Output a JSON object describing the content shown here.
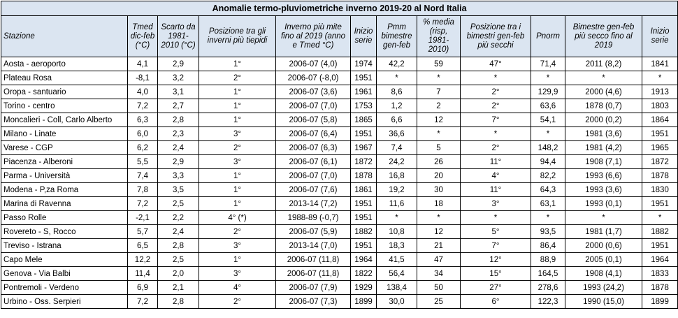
{
  "title": "Anomalie termo-pluviometriche inverno 2019-20 al Nord Italia",
  "headers": [
    "Stazione",
    "Tmed dic-feb (°C)",
    "Scarto da 1981-2010 (°C)",
    "Posizione tra gli inverni più tiepidi",
    "Inverno più mite fino al 2019 (anno e Tmed °C)",
    "Inizio serie",
    "Pmm bimestre gen-feb",
    "% media (risp, 1981-2010)",
    "Posizione tra i bimestri gen-feb più secchi",
    "Pnorm",
    "Bimestre gen-feb più secco fino al 2019",
    "Inizio serie"
  ],
  "rows": [
    [
      "Aosta - aeroporto",
      "4,1",
      "2,9",
      "1°",
      "2006-07 (4,0)",
      "1974",
      "42,2",
      "59",
      "47°",
      "71,4",
      "2011 (8,2)",
      "1841"
    ],
    [
      "Plateau Rosa",
      "-8,1",
      "3,2",
      "2°",
      "2006-07 (-8,0)",
      "1951",
      "*",
      "*",
      "*",
      "*",
      "*",
      "*"
    ],
    [
      "Oropa - santuario",
      "4,0",
      "3,1",
      "1°",
      "2006-07 (3,6)",
      "1961",
      "8,6",
      "7",
      "2°",
      "129,9",
      "2000 (4,6)",
      "1913"
    ],
    [
      "Torino - centro",
      "7,2",
      "2,7",
      "1°",
      "2006-07 (7,0)",
      "1753",
      "1,2",
      "2",
      "2°",
      "63,6",
      "1878 (0,7)",
      "1803"
    ],
    [
      "Moncalieri - Coll, Carlo Alberto",
      "6,3",
      "2,8",
      "1°",
      "2006-07 (5,8)",
      "1865",
      "6,6",
      "12",
      "7°",
      "54,1",
      "2000 (0,2)",
      "1864"
    ],
    [
      "Milano - Linate",
      "6,0",
      "2,3",
      "3°",
      "2006-07 (6,4)",
      "1951",
      "36,6",
      "*",
      "*",
      "*",
      "1981 (3,6)",
      "1951"
    ],
    [
      "Varese - CGP",
      "6,2",
      "2,4",
      "2°",
      "2006-07 (6,3)",
      "1967",
      "7,4",
      "5",
      "2°",
      "148,2",
      "1981 (4,2)",
      "1965"
    ],
    [
      "Piacenza - Alberoni",
      "5,5",
      "2,9",
      "3°",
      "2006-07 (6,1)",
      "1872",
      "24,2",
      "26",
      "11°",
      "94,4",
      "1908 (7,1)",
      "1872"
    ],
    [
      "Parma - Università",
      "7,4",
      "3,3",
      "1°",
      "2006-07 (7,0)",
      "1878",
      "16,8",
      "20",
      "4°",
      "82,2",
      "1993 (6,6)",
      "1878"
    ],
    [
      "Modena - P,za Roma",
      "7,8",
      "3,5",
      "1°",
      "2006-07 (7,6)",
      "1861",
      "19,2",
      "30",
      "11°",
      "64,3",
      "1993 (3,6)",
      "1830"
    ],
    [
      "Marina di Ravenna",
      "7,2",
      "2,5",
      "1°",
      "2013-14 (7,2)",
      "1951",
      "11,6",
      "18",
      "3°",
      "63,1",
      "1993 (0,1)",
      "1951"
    ],
    [
      "Passo Rolle",
      "-2,1",
      "2,2",
      "4° (*)",
      "1988-89 (-0,7)",
      "1951",
      "*",
      "*",
      "*",
      "*",
      "*",
      "*"
    ],
    [
      "Rovereto - S, Rocco",
      "5,7",
      "2,4",
      "2°",
      "2006-07 (5,9)",
      "1882",
      "10,8",
      "12",
      "5°",
      "93,5",
      "1981 (1,7)",
      "1882"
    ],
    [
      "Treviso - Istrana",
      "6,5",
      "2,8",
      "3°",
      "2013-14 (7,0)",
      "1951",
      "18,3",
      "21",
      "7°",
      "86,4",
      "2000 (0,6)",
      "1951"
    ],
    [
      "Capo Mele",
      "12,2",
      "2,5",
      "1°",
      "2006-07 (11,8)",
      "1964",
      "41,5",
      "47",
      "12°",
      "88,9",
      "2005 (0,1)",
      "1964"
    ],
    [
      "Genova - Via Balbi",
      "11,4",
      "2,0",
      "3°",
      "2006-07 (11,8)",
      "1822",
      "56,4",
      "34",
      "15°",
      "164,5",
      "1908 (4,1)",
      "1833"
    ],
    [
      "Pontremoli - Verdeno",
      "6,9",
      "2,1",
      "4°",
      "2006-07 (7,9)",
      "1929",
      "138,4",
      "50",
      "27°",
      "278,6",
      "1993 (24,2)",
      "1878"
    ],
    [
      "Urbino - Oss. Serpieri",
      "7,2",
      "2,8",
      "2°",
      "2006-07 (7,3)",
      "1899",
      "30,0",
      "25",
      "6°",
      "122,3",
      "1990 (15,0)",
      "1899"
    ]
  ]
}
